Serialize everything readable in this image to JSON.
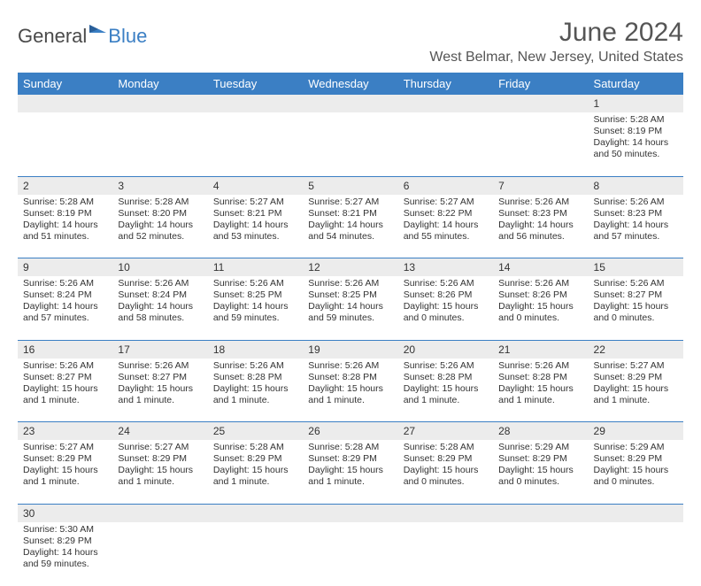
{
  "brand": {
    "part1": "General",
    "part2": "Blue"
  },
  "title": "June 2024",
  "location": "West Belmar, New Jersey, United States",
  "colors": {
    "header_bg": "#3b7fc4",
    "header_text": "#ffffff",
    "daynum_bg": "#ececec",
    "rule": "#3b7fc4",
    "body_text": "#333333",
    "title_text": "#555555"
  },
  "weekdays": [
    "Sunday",
    "Monday",
    "Tuesday",
    "Wednesday",
    "Thursday",
    "Friday",
    "Saturday"
  ],
  "weeks": [
    [
      null,
      null,
      null,
      null,
      null,
      null,
      {
        "n": "1",
        "sr": "Sunrise: 5:28 AM",
        "ss": "Sunset: 8:19 PM",
        "dl": "Daylight: 14 hours and 50 minutes."
      }
    ],
    [
      {
        "n": "2",
        "sr": "Sunrise: 5:28 AM",
        "ss": "Sunset: 8:19 PM",
        "dl": "Daylight: 14 hours and 51 minutes."
      },
      {
        "n": "3",
        "sr": "Sunrise: 5:28 AM",
        "ss": "Sunset: 8:20 PM",
        "dl": "Daylight: 14 hours and 52 minutes."
      },
      {
        "n": "4",
        "sr": "Sunrise: 5:27 AM",
        "ss": "Sunset: 8:21 PM",
        "dl": "Daylight: 14 hours and 53 minutes."
      },
      {
        "n": "5",
        "sr": "Sunrise: 5:27 AM",
        "ss": "Sunset: 8:21 PM",
        "dl": "Daylight: 14 hours and 54 minutes."
      },
      {
        "n": "6",
        "sr": "Sunrise: 5:27 AM",
        "ss": "Sunset: 8:22 PM",
        "dl": "Daylight: 14 hours and 55 minutes."
      },
      {
        "n": "7",
        "sr": "Sunrise: 5:26 AM",
        "ss": "Sunset: 8:23 PM",
        "dl": "Daylight: 14 hours and 56 minutes."
      },
      {
        "n": "8",
        "sr": "Sunrise: 5:26 AM",
        "ss": "Sunset: 8:23 PM",
        "dl": "Daylight: 14 hours and 57 minutes."
      }
    ],
    [
      {
        "n": "9",
        "sr": "Sunrise: 5:26 AM",
        "ss": "Sunset: 8:24 PM",
        "dl": "Daylight: 14 hours and 57 minutes."
      },
      {
        "n": "10",
        "sr": "Sunrise: 5:26 AM",
        "ss": "Sunset: 8:24 PM",
        "dl": "Daylight: 14 hours and 58 minutes."
      },
      {
        "n": "11",
        "sr": "Sunrise: 5:26 AM",
        "ss": "Sunset: 8:25 PM",
        "dl": "Daylight: 14 hours and 59 minutes."
      },
      {
        "n": "12",
        "sr": "Sunrise: 5:26 AM",
        "ss": "Sunset: 8:25 PM",
        "dl": "Daylight: 14 hours and 59 minutes."
      },
      {
        "n": "13",
        "sr": "Sunrise: 5:26 AM",
        "ss": "Sunset: 8:26 PM",
        "dl": "Daylight: 15 hours and 0 minutes."
      },
      {
        "n": "14",
        "sr": "Sunrise: 5:26 AM",
        "ss": "Sunset: 8:26 PM",
        "dl": "Daylight: 15 hours and 0 minutes."
      },
      {
        "n": "15",
        "sr": "Sunrise: 5:26 AM",
        "ss": "Sunset: 8:27 PM",
        "dl": "Daylight: 15 hours and 0 minutes."
      }
    ],
    [
      {
        "n": "16",
        "sr": "Sunrise: 5:26 AM",
        "ss": "Sunset: 8:27 PM",
        "dl": "Daylight: 15 hours and 1 minute."
      },
      {
        "n": "17",
        "sr": "Sunrise: 5:26 AM",
        "ss": "Sunset: 8:27 PM",
        "dl": "Daylight: 15 hours and 1 minute."
      },
      {
        "n": "18",
        "sr": "Sunrise: 5:26 AM",
        "ss": "Sunset: 8:28 PM",
        "dl": "Daylight: 15 hours and 1 minute."
      },
      {
        "n": "19",
        "sr": "Sunrise: 5:26 AM",
        "ss": "Sunset: 8:28 PM",
        "dl": "Daylight: 15 hours and 1 minute."
      },
      {
        "n": "20",
        "sr": "Sunrise: 5:26 AM",
        "ss": "Sunset: 8:28 PM",
        "dl": "Daylight: 15 hours and 1 minute."
      },
      {
        "n": "21",
        "sr": "Sunrise: 5:26 AM",
        "ss": "Sunset: 8:28 PM",
        "dl": "Daylight: 15 hours and 1 minute."
      },
      {
        "n": "22",
        "sr": "Sunrise: 5:27 AM",
        "ss": "Sunset: 8:29 PM",
        "dl": "Daylight: 15 hours and 1 minute."
      }
    ],
    [
      {
        "n": "23",
        "sr": "Sunrise: 5:27 AM",
        "ss": "Sunset: 8:29 PM",
        "dl": "Daylight: 15 hours and 1 minute."
      },
      {
        "n": "24",
        "sr": "Sunrise: 5:27 AM",
        "ss": "Sunset: 8:29 PM",
        "dl": "Daylight: 15 hours and 1 minute."
      },
      {
        "n": "25",
        "sr": "Sunrise: 5:28 AM",
        "ss": "Sunset: 8:29 PM",
        "dl": "Daylight: 15 hours and 1 minute."
      },
      {
        "n": "26",
        "sr": "Sunrise: 5:28 AM",
        "ss": "Sunset: 8:29 PM",
        "dl": "Daylight: 15 hours and 1 minute."
      },
      {
        "n": "27",
        "sr": "Sunrise: 5:28 AM",
        "ss": "Sunset: 8:29 PM",
        "dl": "Daylight: 15 hours and 0 minutes."
      },
      {
        "n": "28",
        "sr": "Sunrise: 5:29 AM",
        "ss": "Sunset: 8:29 PM",
        "dl": "Daylight: 15 hours and 0 minutes."
      },
      {
        "n": "29",
        "sr": "Sunrise: 5:29 AM",
        "ss": "Sunset: 8:29 PM",
        "dl": "Daylight: 15 hours and 0 minutes."
      }
    ],
    [
      {
        "n": "30",
        "sr": "Sunrise: 5:30 AM",
        "ss": "Sunset: 8:29 PM",
        "dl": "Daylight: 14 hours and 59 minutes."
      },
      null,
      null,
      null,
      null,
      null,
      null
    ]
  ]
}
